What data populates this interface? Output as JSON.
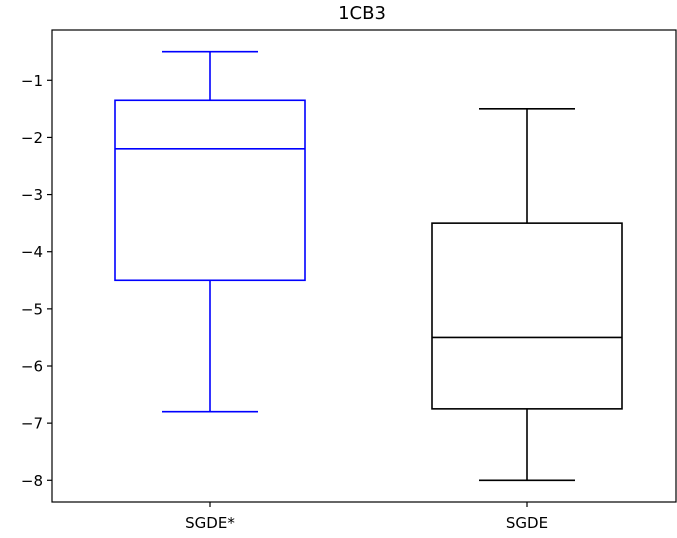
{
  "chart_data": {
    "type": "boxplot",
    "title": "1CB3",
    "xlabel": "",
    "ylabel": "",
    "categories": [
      "SGDE*",
      "SGDE"
    ],
    "series": [
      {
        "name": "SGDE*",
        "color": "#0000ff",
        "whisker_low": -6.8,
        "q1": -4.5,
        "median": -2.2,
        "q3": -1.35,
        "whisker_high": -0.5
      },
      {
        "name": "SGDE",
        "color": "#000000",
        "whisker_low": -8.0,
        "q1": -6.75,
        "median": -5.5,
        "q3": -3.5,
        "whisker_high": -1.5
      }
    ],
    "ylim": [
      -8.38,
      -0.12
    ],
    "yticks": [
      -8,
      -7,
      -6,
      -5,
      -4,
      -3,
      -2,
      -1
    ],
    "ytick_labels": [
      "−8",
      "−7",
      "−6",
      "−5",
      "−4",
      "−3",
      "−2",
      "−1"
    ],
    "grid": false,
    "legend": false
  }
}
